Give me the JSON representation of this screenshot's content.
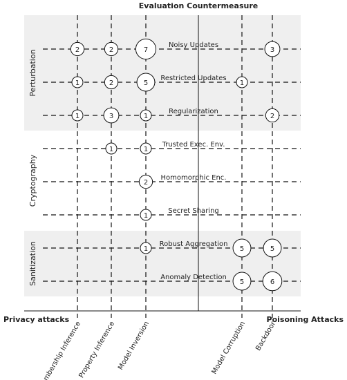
{
  "chart_data": {
    "type": "bubble-matrix",
    "title": "Evaluation Countermeasure",
    "column_groups": [
      {
        "name": "Privacy attacks",
        "columns": [
          "Membership Inference",
          "Property Inference",
          "Model Inversion"
        ]
      },
      {
        "name": "Poisoning Attacks",
        "columns": [
          "Model Corruption",
          "Backdoor"
        ]
      }
    ],
    "groups": [
      {
        "name": "Perturbation",
        "shaded": true,
        "rows": [
          {
            "name": "Noisy Updates",
            "values": [
              2,
              2,
              7,
              null,
              3
            ]
          },
          {
            "name": "Restricted Updates",
            "values": [
              1,
              2,
              5,
              1,
              null
            ]
          },
          {
            "name": "Regularization",
            "values": [
              1,
              3,
              1,
              null,
              2
            ]
          }
        ]
      },
      {
        "name": "Cryptography",
        "shaded": false,
        "rows": [
          {
            "name": "Trusted Exec. Env.",
            "values": [
              null,
              1,
              1,
              null,
              null
            ]
          },
          {
            "name": "Homomorphic Enc.",
            "values": [
              null,
              null,
              2,
              null,
              null
            ]
          },
          {
            "name": "Secret Sharing",
            "values": [
              null,
              null,
              1,
              null,
              null
            ]
          }
        ]
      },
      {
        "name": "Sanitization",
        "shaded": true,
        "rows": [
          {
            "name": "Robust Aggregation",
            "values": [
              null,
              null,
              1,
              5,
              5
            ]
          },
          {
            "name": "Anomaly Detection",
            "values": [
              null,
              null,
              null,
              5,
              6
            ]
          }
        ]
      }
    ]
  }
}
